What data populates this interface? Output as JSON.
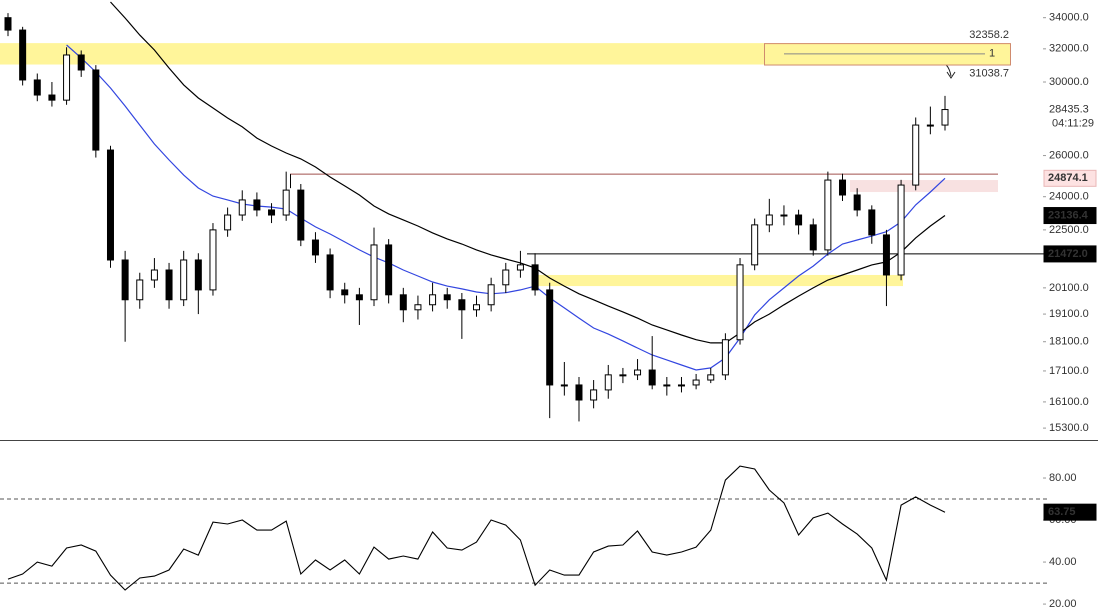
{
  "chart_data": {
    "type": "candlestick",
    "log": true,
    "ylim": [
      14950,
      35190
    ],
    "yticks": [
      {
        "value": 34000,
        "label": "34000.0"
      },
      {
        "value": 32000,
        "label": "32000.0"
      },
      {
        "value": 30000,
        "label": "30000.0"
      },
      {
        "value": 26000,
        "label": "26000.0"
      },
      {
        "value": 24000,
        "label": "24000.0"
      },
      {
        "value": 22500,
        "label": "22500.0"
      },
      {
        "value": 20100,
        "label": "20100.0"
      },
      {
        "value": 19100,
        "label": "19100.0"
      },
      {
        "value": 18100,
        "label": "18100.0"
      },
      {
        "value": 17100,
        "label": "17100.0"
      },
      {
        "value": 16100,
        "label": "16100.0"
      },
      {
        "value": 15300,
        "label": "15300.0"
      }
    ],
    "up_color": "#ffffff",
    "down_color": "#000000",
    "ohlc": [
      [
        34000,
        34300,
        32800,
        33190
      ],
      [
        33190,
        33400,
        29800,
        30120
      ],
      [
        30120,
        30500,
        28900,
        29250
      ],
      [
        29250,
        30000,
        28600,
        28960
      ],
      [
        28960,
        32100,
        28700,
        31620
      ],
      [
        31620,
        31900,
        30300,
        30710
      ],
      [
        30710,
        31000,
        25900,
        26280
      ],
      [
        26280,
        26500,
        20900,
        21220
      ],
      [
        21220,
        21600,
        18100,
        19640
      ],
      [
        19640,
        20700,
        19300,
        20410
      ],
      [
        20410,
        21300,
        20100,
        20810
      ],
      [
        20810,
        21100,
        19300,
        19640
      ],
      [
        19640,
        21600,
        19400,
        21220
      ],
      [
        21220,
        21500,
        19100,
        20020
      ],
      [
        20020,
        22800,
        19800,
        22500
      ],
      [
        22500,
        23500,
        22200,
        23160
      ],
      [
        23160,
        24300,
        22900,
        23850
      ],
      [
        23850,
        24200,
        23100,
        23390
      ],
      [
        23390,
        23700,
        22800,
        23160
      ],
      [
        23160,
        25200,
        22900,
        24310
      ],
      [
        24310,
        24600,
        21800,
        22060
      ],
      [
        22060,
        22400,
        21100,
        21430
      ],
      [
        21430,
        21700,
        19700,
        20020
      ],
      [
        20020,
        20300,
        19500,
        19830
      ],
      [
        19830,
        20100,
        18700,
        19640
      ],
      [
        19640,
        22600,
        19400,
        21850
      ],
      [
        21850,
        22100,
        19500,
        19830
      ],
      [
        19830,
        20100,
        18800,
        19260
      ],
      [
        19260,
        19800,
        18900,
        19450
      ],
      [
        19450,
        20300,
        19200,
        19830
      ],
      [
        19830,
        20100,
        19300,
        19640
      ],
      [
        19640,
        19900,
        18200,
        19260
      ],
      [
        19260,
        19800,
        19000,
        19450
      ],
      [
        19450,
        20500,
        19200,
        20220
      ],
      [
        20220,
        21100,
        19900,
        20810
      ],
      [
        20810,
        21600,
        20500,
        21020
      ],
      [
        21020,
        21500,
        19800,
        20020
      ],
      [
        20020,
        20300,
        15600,
        16640
      ],
      [
        16640,
        17400,
        16300,
        16640
      ],
      [
        16640,
        16900,
        15500,
        16160
      ],
      [
        16160,
        16800,
        15900,
        16480
      ],
      [
        16480,
        17300,
        16200,
        16970
      ],
      [
        16970,
        17200,
        16700,
        16970
      ],
      [
        16970,
        17500,
        16800,
        17130
      ],
      [
        17130,
        18300,
        16500,
        16640
      ],
      [
        16640,
        16900,
        16300,
        16640
      ],
      [
        16640,
        16900,
        16400,
        16640
      ],
      [
        16640,
        17000,
        16500,
        16800
      ],
      [
        16800,
        17200,
        16700,
        16970
      ],
      [
        16970,
        18400,
        16800,
        18170
      ],
      [
        18170,
        21300,
        18000,
        21020
      ],
      [
        21020,
        23000,
        20800,
        22720
      ],
      [
        22720,
        23900,
        22400,
        23160
      ],
      [
        23160,
        23600,
        22700,
        23160
      ],
      [
        23160,
        23400,
        22300,
        22720
      ],
      [
        22720,
        23000,
        21400,
        21640
      ],
      [
        21640,
        25200,
        21400,
        24790
      ],
      [
        24790,
        25100,
        23800,
        24080
      ],
      [
        24080,
        24400,
        23100,
        23390
      ],
      [
        23390,
        23600,
        21900,
        22280
      ],
      [
        22280,
        22500,
        19400,
        20610
      ],
      [
        20610,
        24800,
        20400,
        24550
      ],
      [
        24550,
        28000,
        24300,
        27590
      ],
      [
        27590,
        28600,
        27100,
        27590
      ],
      [
        27590,
        29200,
        27300,
        28435.3
      ]
    ],
    "countdown": "04:11:29",
    "moving_averages": [
      {
        "color": "#3346e0",
        "tag_color": "#fde2e2",
        "values": [
          null,
          null,
          null,
          null,
          32240,
          31440,
          30590,
          29650,
          28630,
          27590,
          26590,
          25780,
          25030,
          24410,
          24030,
          23850,
          23660,
          23570,
          23520,
          23430,
          23020,
          22630,
          22320,
          21980,
          21640,
          21340,
          21100,
          20810,
          20570,
          20330,
          20170,
          20060,
          19940,
          19870,
          19910,
          20020,
          20170,
          19710,
          19330,
          18950,
          18590,
          18370,
          18130,
          17880,
          17640,
          17470,
          17300,
          17130,
          17200,
          17540,
          18230,
          19070,
          19640,
          20100,
          20570,
          20970,
          21470,
          21890,
          22060,
          22230,
          22420,
          22850,
          23620,
          24220,
          24874.1
        ]
      },
      {
        "color": "#000000",
        "tag_color": "#000000",
        "values": [
          null,
          null,
          null,
          null,
          null,
          null,
          null,
          35050,
          33980,
          32870,
          31930,
          30830,
          29830,
          29080,
          28520,
          27970,
          27490,
          26900,
          26490,
          26130,
          25830,
          25430,
          24940,
          24510,
          24080,
          23570,
          23210,
          22940,
          22670,
          22370,
          22110,
          21890,
          21640,
          21430,
          21260,
          21100,
          20890,
          20490,
          20170,
          19870,
          19640,
          19400,
          19180,
          18950,
          18700,
          18520,
          18340,
          18170,
          18060,
          18060,
          18410,
          18810,
          19100,
          19450,
          19780,
          20100,
          20410,
          20610,
          20810,
          21020,
          21140,
          21550,
          22150,
          22670,
          23136.4
        ]
      }
    ],
    "zone": {
      "high": 32358.2,
      "low": 31038.7,
      "text": "1",
      "color": "#fff59a"
    },
    "support_zone": {
      "high": 20610,
      "low": 20170,
      "color": "#fff59a"
    },
    "pink_zone": {
      "high": 24790,
      "low": 24220,
      "color": "#f8e1e1"
    },
    "levels": [
      {
        "value": 25080,
        "color": "#a0524d"
      },
      {
        "value": 21472,
        "label": "21472.0",
        "color": "#000000"
      }
    ],
    "rsi": {
      "color": "#000000",
      "ylim": [
        14.8,
        98.1
      ],
      "yticks": [
        {
          "value": 80,
          "label": "80.00"
        },
        {
          "value": 60,
          "label": "60.00"
        },
        {
          "value": 40,
          "label": "40.00"
        },
        {
          "value": 20,
          "label": "20.00"
        }
      ],
      "bands": [
        70,
        30
      ],
      "values": [
        31.9,
        34.3,
        40,
        38.1,
        46.7,
        48.1,
        45.2,
        33.8,
        26.7,
        32.4,
        33.3,
        36.2,
        46.2,
        43.3,
        59,
        58.1,
        60,
        55.2,
        55.2,
        59.5,
        34.3,
        41,
        36.2,
        41,
        34.3,
        47.1,
        41.4,
        42.9,
        41.4,
        54.3,
        46.7,
        45.7,
        49.5,
        60,
        57.6,
        50.5,
        29,
        36.2,
        33.8,
        33.8,
        44.8,
        47.6,
        48.1,
        54.8,
        44.8,
        43.3,
        44.8,
        47.1,
        55.2,
        79,
        85.7,
        84.3,
        74.3,
        68.1,
        52.9,
        61,
        63.3,
        58.1,
        53.3,
        46.7,
        31.4,
        67.1,
        71,
        67.1,
        63.75
      ]
    }
  }
}
